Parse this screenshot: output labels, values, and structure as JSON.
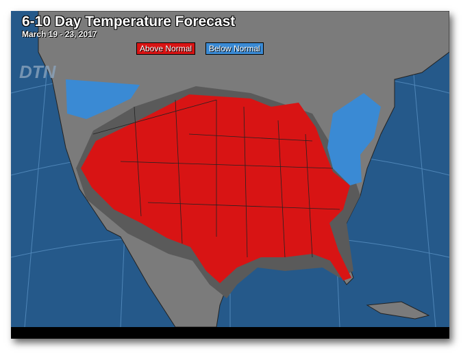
{
  "title": "6-10 Day Temperature Forecast",
  "subtitle": "March 19 - 23, 2017",
  "legend": [
    {
      "label": "Above Normal",
      "color": "#d81414"
    },
    {
      "label": "Below Normal",
      "color": "#3a8ad4"
    }
  ],
  "logo": "DTN",
  "colors": {
    "ocean": "#25598a",
    "land": "#7b7b7b",
    "near_normal": "#5a5a5a",
    "above": "#d81414",
    "below": "#3a8ad4"
  }
}
